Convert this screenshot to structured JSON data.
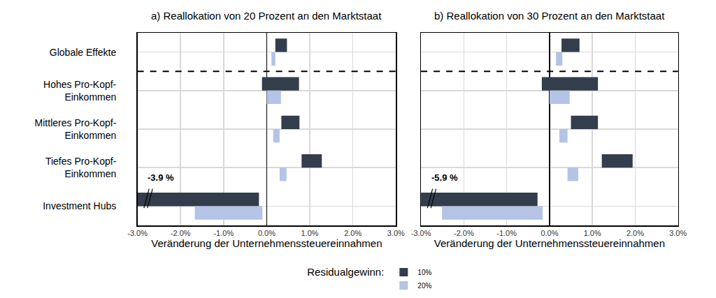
{
  "chart_data": [
    {
      "type": "bar",
      "title": "a) Reallokation von 20 Prozent an den Marktstaat",
      "orientation": "horizontal",
      "x_label": "Veränderung der Unternehmenssteuereinnahmen",
      "categories": [
        "Globale Effekte",
        "Hohes Pro-Kopf-\nEinkommen",
        "Mittleres Pro-Kopf-\nEinkommen",
        "Tiefes Pro-Kopf-\nEinkommen",
        "Investment Hubs"
      ],
      "series": [
        {
          "name": "10%",
          "color": "#343d4b",
          "ranges": [
            [
              0.2,
              0.47
            ],
            [
              -0.11,
              0.75
            ],
            [
              0.34,
              0.76
            ],
            [
              0.81,
              1.28
            ],
            [
              -3.9,
              -0.18
            ]
          ]
        },
        {
          "name": "20%",
          "color": "#b4c3e6",
          "ranges": [
            [
              0.11,
              0.2
            ],
            [
              0.0,
              0.33
            ],
            [
              0.15,
              0.3
            ],
            [
              0.3,
              0.46
            ],
            [
              -1.67,
              -0.1
            ]
          ]
        }
      ],
      "xlim": [
        -3,
        3
      ],
      "xticks": [
        {
          "value": -3,
          "label": "-3.0%"
        },
        {
          "value": -2,
          "label": "-2.0%"
        },
        {
          "value": -1,
          "label": "-1.0%"
        },
        {
          "value": 0,
          "label": "0.0%"
        },
        {
          "value": 1,
          "label": "1.0%"
        },
        {
          "value": 2,
          "label": "2.0%"
        },
        {
          "value": 3,
          "label": "3.0%"
        }
      ],
      "grid": true,
      "legend": "bottom",
      "legend_title": "Residualgewinn:",
      "annotations": [
        {
          "text": "-3.9 %"
        }
      ]
    },
    {
      "type": "bar",
      "title": "b) Reallokation von 30 Prozent an den Marktstaat",
      "orientation": "horizontal",
      "x_label": "Veränderung der Unternehmenssteuereinnahmen",
      "categories": [
        "Globale Effekte",
        "Hohes Pro-Kopf-\nEinkommen",
        "Mittleres Pro-Kopf-\nEinkommen",
        "Tiefes Pro-Kopf-\nEinkommen",
        "Investment Hubs"
      ],
      "series": [
        {
          "name": "10%",
          "color": "#343d4b",
          "ranges": [
            [
              0.28,
              0.7
            ],
            [
              -0.18,
              1.13
            ],
            [
              0.5,
              1.13
            ],
            [
              1.22,
              1.94
            ],
            [
              -5.9,
              -0.28
            ]
          ]
        },
        {
          "name": "20%",
          "color": "#b4c3e6",
          "ranges": [
            [
              0.15,
              0.3
            ],
            [
              0.0,
              0.47
            ],
            [
              0.23,
              0.42
            ],
            [
              0.42,
              0.67
            ],
            [
              -2.51,
              -0.16
            ]
          ]
        }
      ],
      "xlim": [
        -3,
        3
      ],
      "xticks": [
        {
          "value": -3,
          "label": "-3.0%"
        },
        {
          "value": -2,
          "label": "-2.0%"
        },
        {
          "value": -1,
          "label": "-1.0%"
        },
        {
          "value": 0,
          "label": "0.0%"
        },
        {
          "value": 1,
          "label": "1.0%"
        },
        {
          "value": 2,
          "label": "2.0%"
        },
        {
          "value": 3,
          "label": "3.0%"
        }
      ],
      "grid": true,
      "annotations": [
        {
          "text": "-5.9 %"
        }
      ]
    }
  ]
}
